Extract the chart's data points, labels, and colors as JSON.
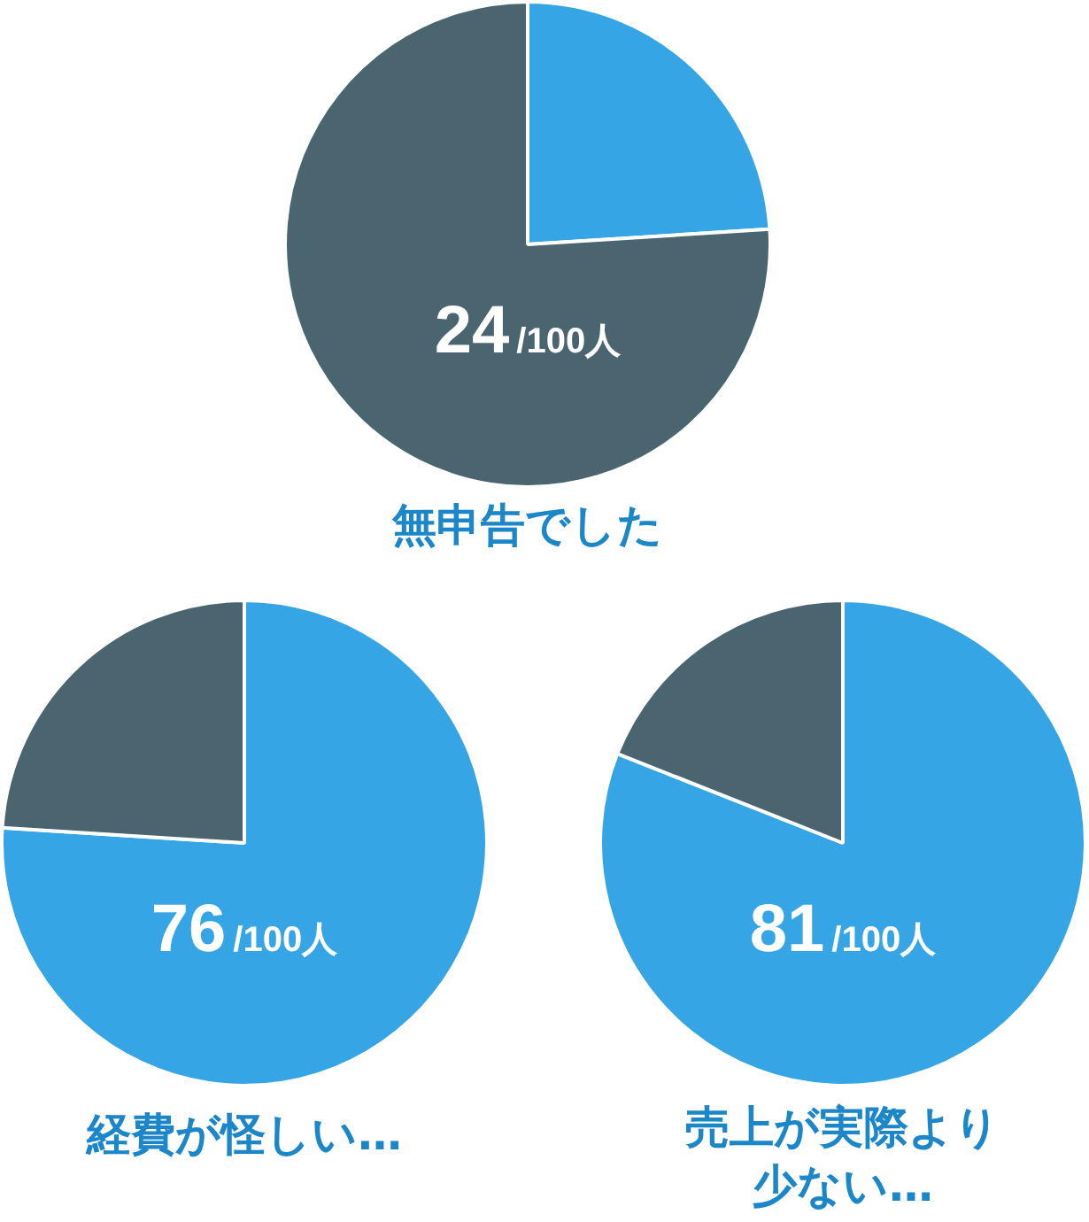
{
  "chart_data": [
    {
      "type": "pie",
      "title": "無申告でした",
      "categories": [
        null,
        null
      ],
      "values": [
        24,
        76
      ],
      "colors": [
        "#35a5e6",
        "#4a6470"
      ],
      "annotations": [
        "24/100人"
      ],
      "legend": false
    },
    {
      "type": "pie",
      "title": "経費が怪しい…",
      "categories": [
        null,
        null
      ],
      "values": [
        76,
        24
      ],
      "colors": [
        "#35a5e6",
        "#4a6470"
      ],
      "annotations": [
        "76/100人"
      ],
      "legend": false
    },
    {
      "type": "pie",
      "title": "売上が実際より少ない…",
      "categories": [
        null,
        null
      ],
      "values": [
        81,
        19
      ],
      "colors": [
        "#35a5e6",
        "#4a6470"
      ],
      "annotations": [
        "81/100人"
      ],
      "legend": false
    }
  ]
}
